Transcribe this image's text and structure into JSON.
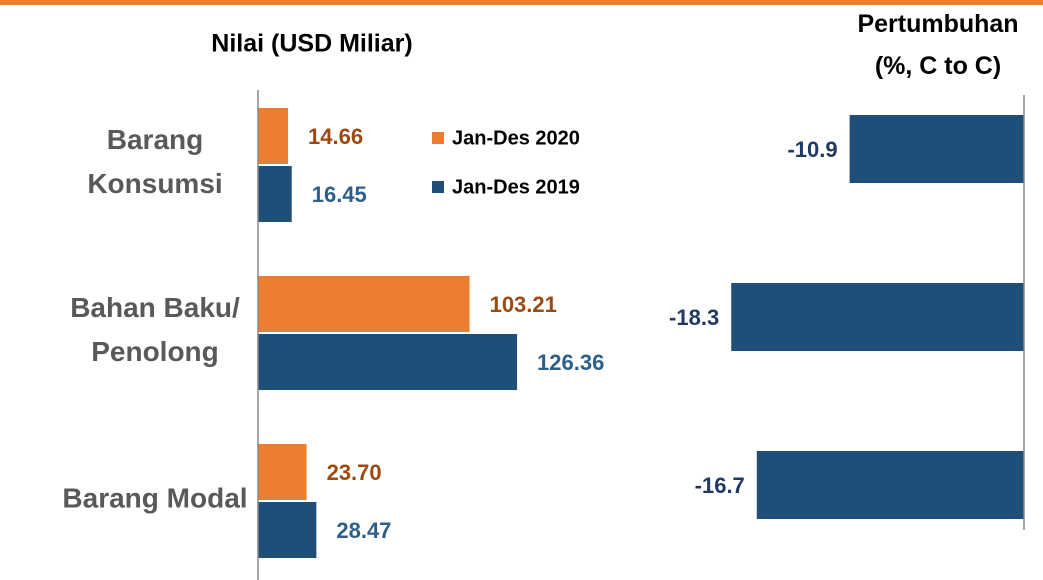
{
  "chart_data": [
    {
      "type": "hbar",
      "title": "Nilai (USD Miliar)",
      "categories": [
        "Barang\nKonsumsi",
        "Bahan Baku/\nPenolong",
        "Barang Modal"
      ],
      "series": [
        {
          "name": "Jan-Des 2020",
          "color": "#ED7D31",
          "label_color": "#9C4A12",
          "values": [
            14.66,
            103.21,
            23.7
          ],
          "value_labels": [
            "14.66",
            "103.21",
            "23.70"
          ]
        },
        {
          "name": "Jan-Des 2019",
          "color": "#1F4E79",
          "label_color": "#2E5F8A",
          "values": [
            16.45,
            126.36,
            28.47
          ],
          "value_labels": [
            "16.45",
            "126.36",
            "28.47"
          ]
        }
      ],
      "xlim": [
        0,
        180
      ]
    },
    {
      "type": "hbar-neg",
      "title": "Pertumbuhan\n(%, C to C)",
      "series": [
        {
          "color": "#1F4E79",
          "label_color": "#1F3864",
          "values": [
            -10.9,
            -18.3,
            -16.7
          ]
        }
      ],
      "xlim": [
        -20,
        0
      ]
    }
  ]
}
